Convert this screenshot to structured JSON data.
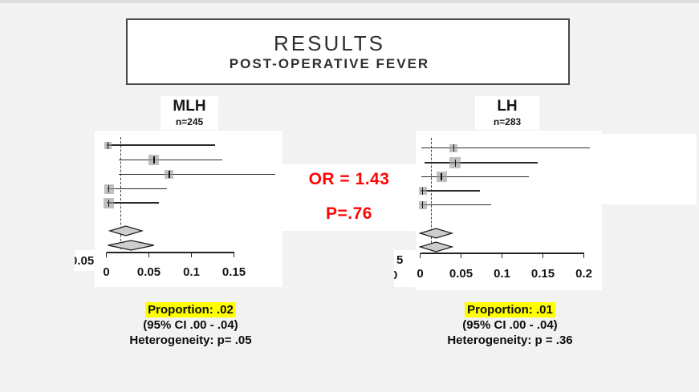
{
  "slide": {
    "title": "RESULTS",
    "subtitle": "POST-OPERATIVE FEVER",
    "or_label": "OR = 1.43",
    "p_label": "P=.76"
  },
  "colors": {
    "background": "#f2f2f2",
    "panel_white": "#ffffff",
    "accent_red": "#ff0505",
    "highlight_yellow": "#ffff00",
    "title_box_border": "#474747",
    "forest_gray_square": "#9e9e9e",
    "diamond_fill": "#cdcdcd"
  },
  "chart_data": [
    {
      "type": "forest",
      "group_label": "MLH",
      "n_label": "n=245",
      "xlim": [
        0,
        0.15
      ],
      "axis_ticks": [
        "0",
        "0.05",
        "0.1",
        "0.15"
      ],
      "axis_tick_values": [
        0,
        0.05,
        0.1,
        0.15
      ],
      "cropped_axis_labels": [
        "0.05"
      ],
      "null_line": 0.0165,
      "studies": [
        {
          "estimate": 0.002,
          "ci_low": 0.0,
          "ci_high": 0.128,
          "box_size": 9
        },
        {
          "estimate": 0.056,
          "ci_low": 0.015,
          "ci_high": 0.136,
          "box_size": 13
        },
        {
          "estimate": 0.074,
          "ci_low": 0.015,
          "ci_high": 0.199,
          "box_size": 11
        },
        {
          "estimate": 0.003,
          "ci_low": 0.0,
          "ci_high": 0.071,
          "box_size": 12
        },
        {
          "estimate": 0.003,
          "ci_low": 0.0,
          "ci_high": 0.062,
          "box_size": 13
        }
      ],
      "diamonds": [
        {
          "ci_low": 0.004,
          "ci_high": 0.042
        },
        {
          "ci_low": 0.002,
          "ci_high": 0.056
        }
      ],
      "caption": {
        "proportion_label": "Proportion: .02",
        "ci_label": "(95% CI .00 - .04)",
        "heterogeneity_label": "Heterogeneity: p= .05"
      }
    },
    {
      "type": "forest",
      "group_label": "LH",
      "n_label": "n=283",
      "xlim": [
        0,
        0.2
      ],
      "axis_ticks": [
        "0",
        "0.05",
        "0.1",
        "0.15",
        "0.2"
      ],
      "axis_tick_values": [
        0,
        0.05,
        0.1,
        0.15,
        0.2
      ],
      "cropped_axis_labels": [
        "5",
        "0"
      ],
      "null_line": 0.013,
      "studies": [
        {
          "estimate": 0.041,
          "ci_low": 0.001,
          "ci_high": 0.207,
          "box_size": 10
        },
        {
          "estimate": 0.043,
          "ci_low": 0.005,
          "ci_high": 0.144,
          "box_size": 14
        },
        {
          "estimate": 0.026,
          "ci_low": 0.001,
          "ci_high": 0.133,
          "box_size": 13
        },
        {
          "estimate": 0.003,
          "ci_low": 0.0,
          "ci_high": 0.073,
          "box_size": 10
        },
        {
          "estimate": 0.003,
          "ci_low": 0.0,
          "ci_high": 0.087,
          "box_size": 10
        }
      ],
      "diamonds": [
        {
          "ci_low": 0.0,
          "ci_high": 0.039
        },
        {
          "ci_low": 0.0,
          "ci_high": 0.039
        }
      ],
      "caption": {
        "proportion_label": "Proportion: .01",
        "ci_label": "(95% CI .00 - .04)",
        "heterogeneity_label": "Heterogeneity: p = .36"
      }
    }
  ]
}
